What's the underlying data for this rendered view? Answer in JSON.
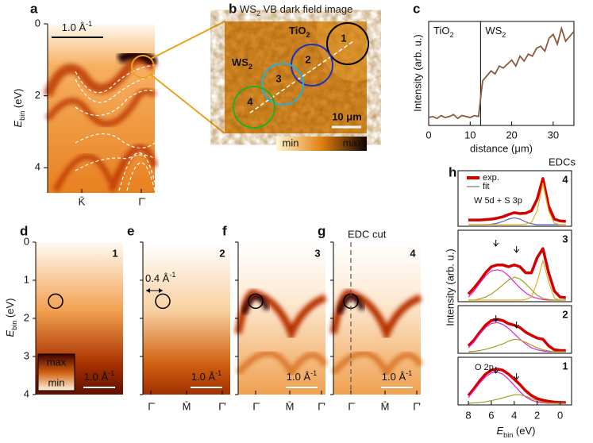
{
  "chart_data": [
    {
      "type": "image",
      "label": "a",
      "scale_bar": [
        "1.0 Å",
        "-1"
      ],
      "ylabel": [
        "E",
        "bin",
        " (eV)"
      ],
      "ylim": [
        0,
        4.7
      ],
      "yticks": [
        0,
        2,
        4
      ],
      "categories": [
        "K̄",
        "Γ̄"
      ]
    },
    {
      "type": "image",
      "label": "b",
      "title": [
        "WS",
        "2",
        " VB dark field image"
      ],
      "substrate": [
        "TiO",
        "2"
      ],
      "flake": [
        "WS",
        "2"
      ],
      "spots": [
        "1",
        "2",
        "3",
        "4"
      ],
      "scale_bar": "10 μm",
      "colorbar": [
        "min",
        "max"
      ]
    },
    {
      "type": "line",
      "label": "c",
      "x": [
        0,
        1,
        2,
        3,
        4,
        5,
        6,
        7,
        8,
        9,
        10,
        11,
        12,
        13,
        14,
        15,
        16,
        17,
        18,
        19,
        20,
        21,
        22,
        23,
        24,
        25,
        26,
        27,
        28,
        29,
        30,
        31,
        32,
        33,
        34,
        35
      ],
      "values": [
        0.08,
        0.09,
        0.07,
        0.1,
        0.08,
        0.09,
        0.11,
        0.07,
        0.1,
        0.09,
        0.08,
        0.1,
        0.09,
        0.45,
        0.5,
        0.55,
        0.52,
        0.6,
        0.58,
        0.62,
        0.66,
        0.6,
        0.7,
        0.65,
        0.72,
        0.7,
        0.78,
        0.8,
        0.75,
        0.88,
        0.92,
        0.82,
        0.98,
        0.85,
        0.9,
        0.95
      ],
      "color": "#8b5a3c",
      "xlim": [
        0,
        35
      ],
      "xticks": [
        0,
        10,
        20,
        30
      ],
      "ylim": [
        0,
        1.05
      ],
      "boundary": 12.5,
      "xlabel": "distance (μm)",
      "ylabel": "Intensity (arb. u.)",
      "regions": [
        [
          "TiO",
          "2"
        ],
        [
          "WS",
          "2"
        ]
      ]
    },
    {
      "type": "image",
      "label": "d",
      "spot": "1",
      "spot_color": "#000000",
      "ylim": [
        0,
        4
      ],
      "yticks": [
        0,
        1,
        2,
        3,
        4
      ],
      "ylabel": [
        "E",
        "bin",
        " (eV)"
      ],
      "scale_bar": [
        "1.0 Å",
        "-1"
      ],
      "colorbar": [
        "max",
        "min"
      ]
    },
    {
      "type": "image",
      "label": "e",
      "spot": "2",
      "spot_color": "#2030c0",
      "ylim": [
        0,
        4
      ],
      "yticks": [
        0,
        1,
        2,
        3,
        4
      ],
      "scale_bar": [
        "1.0 Å",
        "-1"
      ],
      "annotation": [
        "0.4 Å",
        "-1"
      ],
      "categories": [
        "Γ̄",
        "M̄",
        "Γ̄′"
      ]
    },
    {
      "type": "image",
      "label": "f",
      "spot": "3",
      "spot_color": "#20b0e0",
      "ylim": [
        0,
        4
      ],
      "yticks": [
        0,
        1,
        2,
        3,
        4
      ],
      "scale_bar": [
        "1.0 Å",
        "-1"
      ],
      "categories": [
        "Γ̄",
        "M̄",
        "Γ̄′"
      ]
    },
    {
      "type": "image",
      "label": "g",
      "spot": "4",
      "spot_color": "#20b020",
      "ylim": [
        0,
        4
      ],
      "yticks": [
        0,
        1,
        2,
        3,
        4
      ],
      "scale_bar": [
        "1.0 Å",
        "-1"
      ],
      "annotation": "EDC cut",
      "categories": [
        "Γ̄",
        "M̄",
        "Γ̄′"
      ]
    },
    {
      "type": "line",
      "label": "h",
      "title": "EDCs",
      "x": [
        8,
        7.5,
        7,
        6.5,
        6,
        5.5,
        5,
        4.5,
        4,
        3.5,
        3,
        2.5,
        2,
        1.5,
        1,
        0.5,
        0,
        -0.5
      ],
      "xlim": [
        8.9,
        -1
      ],
      "xticks": [
        8,
        6,
        4,
        2,
        0
      ],
      "ylim": [
        0,
        1.1
      ],
      "xlabel": [
        "E",
        "bin",
        " (eV)"
      ],
      "ylabel": "Intensity (arb. u.)",
      "legend": [
        {
          "name": "exp.",
          "color": "#d40000"
        },
        {
          "name": "fit",
          "color": "#777777"
        }
      ],
      "panels": [
        {
          "spot": "4",
          "spot_color": "#20b020",
          "annotation": "W 5d + S 3p",
          "series": [
            {
              "color": "#d40000",
              "values": [
                0.1,
                0.1,
                0.1,
                0.11,
                0.12,
                0.14,
                0.17,
                0.22,
                0.26,
                0.24,
                0.25,
                0.3,
                0.55,
                1.0,
                0.4,
                0.12,
                0.08,
                0.07
              ]
            },
            {
              "color": "#6060d0",
              "values": [
                0,
                0,
                0,
                0,
                0.01,
                0.03,
                0.07,
                0.12,
                0.15,
                0.12,
                0.06,
                0.02,
                0,
                0,
                0,
                0,
                0,
                0
              ]
            },
            {
              "color": "#e0b020",
              "values": [
                0,
                0,
                0,
                0,
                0,
                0,
                0,
                0,
                0,
                0,
                0.01,
                0.05,
                0.3,
                0.9,
                0.3,
                0.03,
                0,
                0
              ]
            }
          ]
        },
        {
          "spot": "3",
          "spot_color": "#20b0e0",
          "series": [
            {
              "color": "#d40000",
              "values": [
                0.1,
                0.2,
                0.32,
                0.45,
                0.55,
                0.58,
                0.58,
                0.55,
                0.58,
                0.55,
                0.45,
                0.45,
                0.7,
                0.85,
                0.45,
                0.15,
                0.05,
                0.04
              ]
            },
            {
              "color": "#e020d0",
              "values": [
                0.05,
                0.15,
                0.28,
                0.4,
                0.48,
                0.5,
                0.48,
                0.4,
                0.3,
                0.2,
                0.12,
                0.06,
                0.03,
                0.01,
                0,
                0,
                0,
                0
              ]
            },
            {
              "color": "#a0a020",
              "values": [
                0,
                0,
                0.02,
                0.05,
                0.1,
                0.17,
                0.25,
                0.33,
                0.38,
                0.35,
                0.27,
                0.17,
                0.08,
                0.03,
                0.01,
                0,
                0,
                0
              ]
            },
            {
              "color": "#e0b020",
              "values": [
                0,
                0,
                0,
                0,
                0,
                0,
                0,
                0,
                0,
                0,
                0.01,
                0.05,
                0.3,
                0.65,
                0.3,
                0.03,
                0,
                0
              ]
            }
          ]
        },
        {
          "spot": "2",
          "spot_color": "#2030c0",
          "series": [
            {
              "color": "#d40000",
              "values": [
                0.15,
                0.3,
                0.5,
                0.68,
                0.8,
                0.83,
                0.8,
                0.72,
                0.68,
                0.62,
                0.5,
                0.42,
                0.35,
                0.32,
                0.15,
                0.05,
                0.03,
                0.03
              ]
            },
            {
              "color": "#e020d0",
              "values": [
                0.1,
                0.25,
                0.45,
                0.62,
                0.72,
                0.75,
                0.7,
                0.6,
                0.46,
                0.32,
                0.2,
                0.1,
                0.05,
                0.02,
                0,
                0,
                0,
                0
              ]
            },
            {
              "color": "#a0a020",
              "values": [
                0,
                0.01,
                0.03,
                0.06,
                0.1,
                0.15,
                0.2,
                0.27,
                0.32,
                0.3,
                0.24,
                0.17,
                0.1,
                0.05,
                0.02,
                0,
                0,
                0
              ]
            }
          ]
        },
        {
          "spot": "1",
          "spot_color": "#000000",
          "annotation": "O 2p",
          "series": [
            {
              "color": "#d40000",
              "values": [
                0.2,
                0.38,
                0.58,
                0.75,
                0.85,
                0.88,
                0.85,
                0.75,
                0.62,
                0.48,
                0.32,
                0.2,
                0.12,
                0.08,
                0.05,
                0.03,
                0.02,
                0.02
              ]
            },
            {
              "color": "#e020d0",
              "values": [
                0.15,
                0.33,
                0.52,
                0.68,
                0.78,
                0.8,
                0.75,
                0.62,
                0.46,
                0.3,
                0.16,
                0.08,
                0.03,
                0.01,
                0,
                0,
                0,
                0
              ]
            },
            {
              "color": "#a0a020",
              "values": [
                0,
                0.01,
                0.02,
                0.04,
                0.07,
                0.1,
                0.14,
                0.18,
                0.22,
                0.22,
                0.18,
                0.12,
                0.07,
                0.03,
                0.01,
                0,
                0,
                0
              ]
            }
          ]
        }
      ]
    }
  ]
}
